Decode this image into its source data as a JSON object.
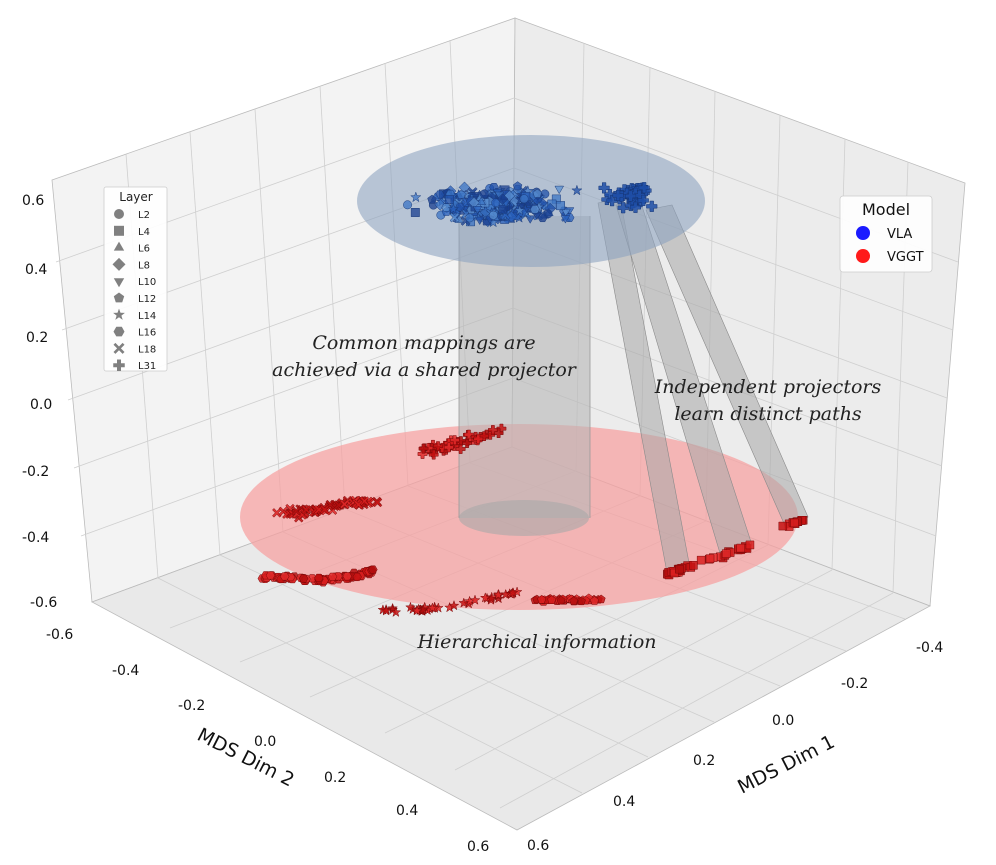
{
  "chart_data": {
    "type": "scatter3d",
    "axes": {
      "x": {
        "label": "MDS Dim 1",
        "ticks": [
          "-0.4",
          "-0.2",
          "0.0",
          "0.2",
          "0.4",
          "0.6"
        ]
      },
      "y": {
        "label": "MDS Dim 2",
        "ticks": [
          "-0.6",
          "-0.4",
          "-0.2",
          "0.0",
          "0.2",
          "0.4",
          "0.6"
        ]
      },
      "z": {
        "label": "",
        "ticks": [
          "-0.6",
          "-0.4",
          "-0.2",
          "0.0",
          "0.2",
          "0.4",
          "0.6"
        ]
      }
    },
    "layer_legend": {
      "title": "Layer",
      "entries": [
        {
          "label": "L2",
          "marker": "circle"
        },
        {
          "label": "L4",
          "marker": "square"
        },
        {
          "label": "L6",
          "marker": "triangle-up"
        },
        {
          "label": "L8",
          "marker": "diamond"
        },
        {
          "label": "L10",
          "marker": "triangle-down"
        },
        {
          "label": "L12",
          "marker": "pentagon"
        },
        {
          "label": "L14",
          "marker": "star"
        },
        {
          "label": "L16",
          "marker": "hexagon"
        },
        {
          "label": "L18",
          "marker": "x"
        },
        {
          "label": "L31",
          "marker": "plus"
        }
      ]
    },
    "model_legend": {
      "title": "Model",
      "entries": [
        {
          "label": "VLA",
          "color": "#1f3fd8"
        },
        {
          "label": "VGGT",
          "color": "#ff1a1a"
        }
      ]
    },
    "annotations": [
      {
        "lines": [
          "Common mappings are",
          "achieved via a shared projector"
        ]
      },
      {
        "lines": [
          "Independent projectors",
          "learn distinct paths"
        ]
      },
      {
        "lines": [
          "Hierarchical information"
        ]
      }
    ],
    "series": [
      {
        "name": "VLA",
        "color": "#1f5fbf",
        "z_level": 0.5,
        "clusters": [
          {
            "layer": "L2-L18",
            "x_range": [
              -0.1,
              0.2
            ],
            "y_range": [
              -0.45,
              0.05
            ],
            "count": 300
          },
          {
            "layer": "L31",
            "x_range": [
              -0.35,
              -0.15
            ],
            "y_range": [
              -0.15,
              0.05
            ],
            "count": 40
          }
        ]
      },
      {
        "name": "VGGT",
        "color": "#d01818",
        "z_level": -0.55,
        "clusters": [
          {
            "layer": "L2",
            "x_range": [
              0.1,
              0.35
            ],
            "y_range": [
              -0.3,
              0.1
            ]
          },
          {
            "layer": "L12",
            "x_range": [
              0.2,
              0.45
            ],
            "y_range": [
              -0.35,
              0.0
            ]
          },
          {
            "layer": "L14",
            "x_range": [
              0.25,
              0.55
            ],
            "y_range": [
              -0.2,
              0.15
            ]
          },
          {
            "layer": "L16",
            "x_range": [
              0.05,
              0.3
            ],
            "y_range": [
              -0.55,
              -0.3
            ]
          },
          {
            "layer": "L18",
            "x_range": [
              -0.05,
              0.1
            ],
            "y_range": [
              -0.5,
              -0.35
            ]
          },
          {
            "layer": "L31",
            "x_range": [
              -0.15,
              0.0
            ],
            "y_range": [
              -0.2,
              -0.05
            ]
          }
        ]
      }
    ]
  }
}
